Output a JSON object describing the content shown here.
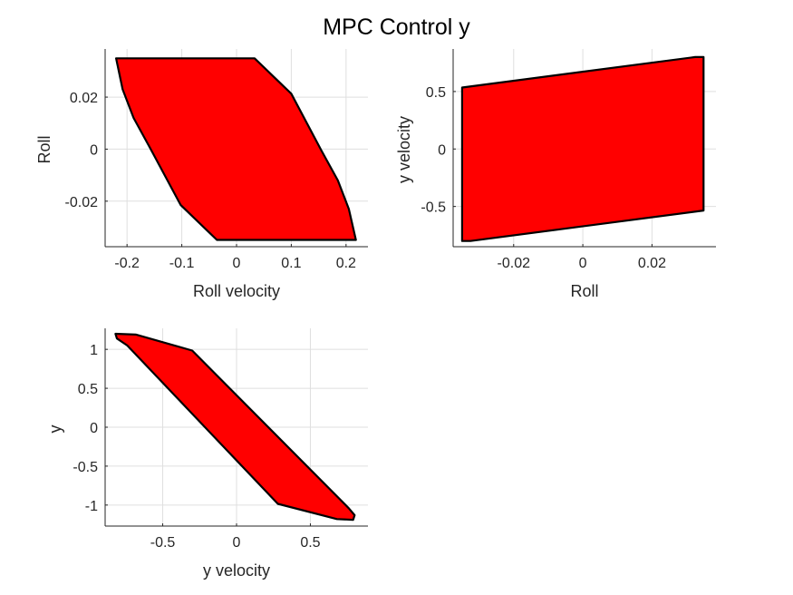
{
  "figure": {
    "title": "MPC Control y"
  },
  "chart_data": [
    {
      "type": "area",
      "xlabel": "Roll velocity",
      "ylabel": "Roll",
      "xlim": [
        -0.24,
        0.24
      ],
      "ylim": [
        -0.0375,
        0.0385
      ],
      "xticks": [
        -0.2,
        -0.1,
        0,
        0.1,
        0.2
      ],
      "xtick_labels": [
        "-0.2",
        "-0.1",
        "0",
        "0.1",
        "0.2"
      ],
      "yticks": [
        -0.02,
        0,
        0.02
      ],
      "ytick_labels": [
        "-0.02",
        "0",
        "0.02"
      ],
      "grid": true,
      "fill_color": "#ff0000",
      "polygon": [
        [
          -0.22,
          0.0349
        ],
        [
          0.033,
          0.0349
        ],
        [
          0.1,
          0.0213
        ],
        [
          0.155,
          -0.0005
        ],
        [
          0.185,
          -0.012
        ],
        [
          0.205,
          -0.023
        ],
        [
          0.218,
          -0.0349
        ],
        [
          -0.036,
          -0.0349
        ],
        [
          -0.102,
          -0.0215
        ],
        [
          -0.158,
          0.0005
        ],
        [
          -0.188,
          0.012
        ],
        [
          -0.208,
          0.023
        ]
      ]
    },
    {
      "type": "area",
      "xlabel": "Roll",
      "ylabel": "y velocity",
      "xlim": [
        -0.0375,
        0.0385
      ],
      "ylim": [
        -0.85,
        0.87
      ],
      "xticks": [
        -0.02,
        0,
        0.02
      ],
      "xtick_labels": [
        "-0.02",
        "0",
        "0.02"
      ],
      "yticks": [
        -0.5,
        0,
        0.5
      ],
      "ytick_labels": [
        "-0.5",
        "0",
        "0.5"
      ],
      "grid": true,
      "fill_color": "#ff0000",
      "polygon": [
        [
          -0.0349,
          0.535
        ],
        [
          0.0325,
          0.8
        ],
        [
          0.0349,
          0.8
        ],
        [
          0.0349,
          -0.535
        ],
        [
          -0.0325,
          -0.8
        ],
        [
          -0.0349,
          -0.8
        ]
      ]
    },
    {
      "type": "area",
      "xlabel": "y velocity",
      "ylabel": "y",
      "xlim": [
        -0.89,
        0.89
      ],
      "ylim": [
        -1.27,
        1.27
      ],
      "xticks": [
        -0.5,
        0,
        0.5
      ],
      "xtick_labels": [
        "-0.5",
        "0",
        "0.5"
      ],
      "yticks": [
        -1,
        -0.5,
        0,
        0.5,
        1
      ],
      "ytick_labels": [
        "-1",
        "-0.5",
        "0",
        "0.5",
        "1"
      ],
      "grid": true,
      "fill_color": "#ff0000",
      "polygon": [
        [
          -0.82,
          1.2
        ],
        [
          -0.68,
          1.19
        ],
        [
          -0.3,
          0.985
        ],
        [
          0.76,
          -1.04
        ],
        [
          0.8,
          -1.13
        ],
        [
          0.79,
          -1.19
        ],
        [
          0.68,
          -1.18
        ],
        [
          0.28,
          -0.985
        ],
        [
          -0.74,
          1.05
        ],
        [
          -0.81,
          1.14
        ]
      ]
    }
  ]
}
